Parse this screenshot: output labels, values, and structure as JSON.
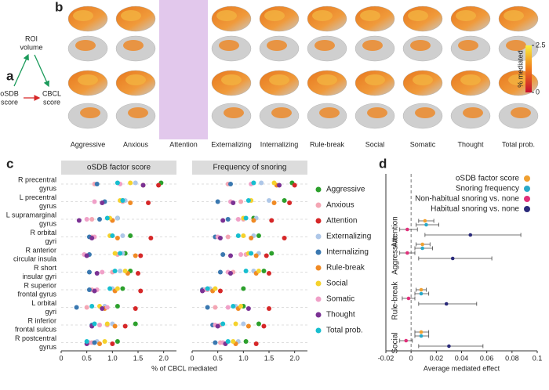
{
  "panel_a": {
    "label": "a",
    "mediator": [
      "ROI",
      "volume"
    ],
    "predictor": [
      "oSDB",
      "score"
    ],
    "outcome": [
      "CBCL",
      "score"
    ]
  },
  "panel_b": {
    "label": "b",
    "columns": [
      "Aggressive",
      "Anxious",
      "Attention",
      "Externalizing",
      "Internalizing",
      "Rule-break",
      "Social",
      "Somatic",
      "Thought",
      "Total prob."
    ],
    "highlight": "Attention",
    "colorbar": {
      "label": "% mediated",
      "lim": [
        0,
        2.5
      ],
      "ticks": [
        0,
        2.5
      ]
    }
  },
  "panel_c": {
    "label": "c",
    "type": "dot",
    "facets": [
      "oSDB factor score",
      "Frequency of snoring"
    ],
    "regions": [
      [
        "R precentral",
        "gyrus"
      ],
      [
        "L precentral",
        "gyrus"
      ],
      [
        "L supramarginal",
        "gyrus"
      ],
      [
        "R orbital",
        "gyri"
      ],
      [
        "R anterior",
        "circular insula"
      ],
      [
        "R short",
        "insular gyri"
      ],
      [
        "R superior",
        "frontal gyrus"
      ],
      [
        "L orbital",
        "gyri"
      ],
      [
        "R inferior",
        "frontal sulcus"
      ],
      [
        "R postcentral",
        "gyrus"
      ]
    ],
    "xlabel": "% of CBCL mediated",
    "xlim": [
      0,
      2.25
    ],
    "xticks": [
      0,
      0.5,
      {
        "value": 1,
        "label": "1.0"
      },
      1.5,
      {
        "value": 2,
        "label": "2.0"
      }
    ],
    "series": [
      {
        "name": "Aggressive",
        "color": "#2ca02c",
        "values": [
          [
            1.95,
            1.2,
            1.1,
            1.35,
            1.25,
            1.35,
            1.2,
            1.1,
            1.45,
            1.1
          ],
          [
            1.95,
            1.8,
            1.2,
            1.3,
            1.55,
            1.4,
            1.0,
            1.0,
            1.3,
            1.05
          ]
        ]
      },
      {
        "name": "Anxious",
        "color": "#f4a6b4",
        "values": [
          [
            0.65,
            1.2,
            0.6,
            0.6,
            1.1,
            1.0,
            0.6,
            0.5,
            0.9,
            0.6
          ],
          [
            0.7,
            0.95,
            1.0,
            0.7,
            1.05,
            0.8,
            0.3,
            0.45,
            0.55,
            0.55
          ]
        ]
      },
      {
        "name": "Attention",
        "color": "#d62728",
        "values": [
          [
            1.9,
            1.7,
            1.0,
            1.75,
            1.55,
            1.5,
            1.55,
            1.45,
            1.25,
            1.0
          ],
          [
            2.0,
            1.9,
            1.55,
            1.8,
            1.45,
            1.5,
            0.55,
            1.5,
            1.4,
            1.25
          ]
        ]
      },
      {
        "name": "Externalizing",
        "color": "#aec7e8",
        "values": [
          [
            1.45,
            1.25,
            1.1,
            1.2,
            1.2,
            1.15,
            1.0,
            0.85,
            1.0,
            0.7
          ],
          [
            1.35,
            1.5,
            1.25,
            1.2,
            1.3,
            1.2,
            0.35,
            0.85,
            1.0,
            0.9
          ]
        ]
      },
      {
        "name": "Internalizing",
        "color": "#3a78b0",
        "values": [
          [
            0.7,
            0.85,
            0.75,
            0.55,
            0.55,
            0.55,
            0.55,
            0.3,
            0.6,
            0.65
          ],
          [
            0.75,
            0.5,
            0.7,
            0.45,
            0.6,
            0.55,
            0.2,
            0.3,
            0.4,
            0.45
          ]
        ]
      },
      {
        "name": "Rule-break",
        "color": "#f08a24",
        "values": [
          [
            1.6,
            1.35,
            1.0,
            1.1,
            1.45,
            1.3,
            1.05,
            0.85,
            1.05,
            0.75
          ],
          [
            1.65,
            1.6,
            1.2,
            1.15,
            1.25,
            1.25,
            0.4,
            0.9,
            1.1,
            0.85
          ]
        ]
      },
      {
        "name": "Social",
        "color": "#f5d22c",
        "values": [
          [
            1.35,
            1.15,
            0.95,
            0.95,
            1.05,
            1.25,
            1.1,
            0.75,
            0.9,
            0.85
          ],
          [
            1.6,
            1.15,
            1.0,
            1.0,
            1.1,
            1.3,
            0.45,
            0.95,
            0.85,
            0.8
          ]
        ]
      },
      {
        "name": "Somatic",
        "color": "#f0a0c8",
        "values": [
          [
            1.15,
            0.65,
            0.5,
            0.65,
            0.45,
            0.8,
            0.7,
            0.9,
            0.75,
            0.55
          ],
          [
            1.15,
            0.75,
            0.9,
            0.5,
            0.95,
            0.7,
            0.25,
            0.7,
            0.45,
            0.6
          ]
        ]
      },
      {
        "name": "Thought",
        "color": "#7b3294",
        "values": [
          [
            1.6,
            0.8,
            0.35,
            0.6,
            0.5,
            0.7,
            0.65,
            0.8,
            0.6,
            0.5
          ],
          [
            1.7,
            0.8,
            0.6,
            0.55,
            0.75,
            0.75,
            0.2,
            1.1,
            0.5,
            0.65
          ]
        ]
      },
      {
        "name": "Total prob.",
        "color": "#17becf",
        "values": [
          [
            1.1,
            1.2,
            0.9,
            1.0,
            1.15,
            1.05,
            0.95,
            0.6,
            0.65,
            0.5
          ],
          [
            1.2,
            1.1,
            1.05,
            0.9,
            1.15,
            1.05,
            0.3,
            0.8,
            0.6,
            0.7
          ]
        ]
      }
    ]
  },
  "panel_d": {
    "label": "d",
    "type": "forest",
    "groups": [
      "Attention",
      "Aggressive",
      "Rule-break",
      "Social"
    ],
    "xlabel": "Average mediated effect",
    "xlim": [
      -0.02,
      0.1
    ],
    "xticks": [
      -0.02,
      0,
      0.02,
      0.04,
      0.06,
      0.08,
      0.1
    ],
    "series": [
      {
        "name": "oSDB factor score",
        "color": "#f0a030",
        "values": [
          0.011,
          0.009,
          0.008,
          0.008
        ],
        "lower": [
          0.006,
          0.004,
          0.004,
          0.003
        ],
        "upper": [
          0.018,
          0.015,
          0.012,
          0.014
        ]
      },
      {
        "name": "Snoring frequency",
        "color": "#29a9c9",
        "values": [
          0.012,
          0.009,
          0.008,
          0.008
        ],
        "lower": [
          0.004,
          0.003,
          0.003,
          0.003
        ],
        "upper": [
          0.022,
          0.017,
          0.014,
          0.014
        ]
      },
      {
        "name": "Non-habitual snoring vs. none",
        "color": "#e0307a",
        "values": [
          -0.003,
          -0.003,
          -0.002,
          -0.004
        ],
        "lower": [
          -0.009,
          -0.009,
          -0.007,
          -0.009
        ],
        "upper": [
          0.005,
          0.003,
          0.003,
          0.001
        ]
      },
      {
        "name": "Habitual snoring vs. none",
        "color": "#2a2a7a",
        "values": [
          0.047,
          0.033,
          0.028,
          0.03
        ],
        "lower": [
          0.011,
          0.006,
          0.006,
          0.006
        ],
        "upper": [
          0.087,
          0.064,
          0.052,
          0.057
        ]
      }
    ]
  }
}
